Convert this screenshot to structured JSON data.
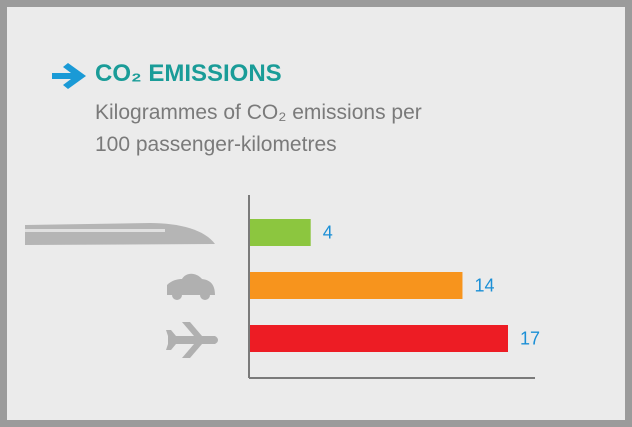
{
  "chart_data": {
    "type": "hbar",
    "title": "CO₂ EMISSIONS",
    "subtitle": "Kilogrammes of CO₂ emissions per 100 passenger-kilometres",
    "categories": [
      null,
      null,
      null
    ],
    "values": [
      4,
      14,
      17
    ],
    "colors": [
      "#8cc63f",
      "#f7941d",
      "#ed1c24"
    ],
    "label_color": "#1b8fd6"
  }
}
